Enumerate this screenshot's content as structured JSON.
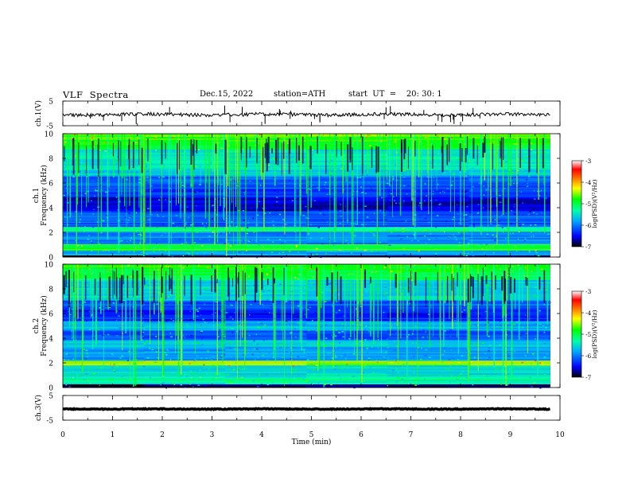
{
  "header": {
    "title": "VLF  Spectra",
    "date": "Dec.15, 2022",
    "station": "station=ATH",
    "start_ut": "start  UT  =    20: 30: 1"
  },
  "chart_data": [
    {
      "type": "line",
      "panel": "ch1-waveform",
      "ylabel": "ch.1(V)",
      "ylim": [
        -5,
        5
      ],
      "yticks": [
        5,
        -5
      ],
      "xlim": [
        0,
        10
      ]
    },
    {
      "type": "heatmap",
      "panel": "ch1-spectrogram",
      "ylabel": "ch.1",
      "ylabel2": "Frequency  (kHz)",
      "ylim": [
        0,
        10
      ],
      "yticks": [
        0,
        2,
        4,
        6,
        8,
        10
      ],
      "xlim": [
        0,
        10
      ],
      "data_end_min": 9.8,
      "colorbar": {
        "label": "log(PSD)(V²/Hz)",
        "range": [
          -7,
          -3
        ],
        "ticks": [
          -3,
          -4,
          -5,
          -6,
          -7
        ],
        "colors": [
          "#000000",
          "#0000ff",
          "#00aaff",
          "#00ffaa",
          "#00ff00",
          "#ffff00",
          "#ff8800",
          "#ff0000",
          "#ffffff"
        ]
      }
    },
    {
      "type": "heatmap",
      "panel": "ch2-spectrogram",
      "ylabel": "ch.2",
      "ylabel2": "Frequency  (kHz)",
      "ylim": [
        0,
        10
      ],
      "yticks": [
        0,
        2,
        4,
        6,
        8,
        10
      ],
      "xlim": [
        0,
        10
      ],
      "data_end_min": 9.8,
      "colorbar": {
        "label": "log(PSD)(V²/Hz)",
        "range": [
          -7,
          -3
        ],
        "ticks": [
          -3,
          -4,
          -5,
          -6,
          -7
        ]
      }
    },
    {
      "type": "line",
      "panel": "ch3-waveform",
      "ylabel": "ch.3(V)",
      "ylim": [
        -5,
        5
      ],
      "yticks": [
        5,
        -5
      ],
      "xlim": [
        0,
        10
      ],
      "xlabel": "Time  (min)",
      "xticks": [
        0,
        1,
        2,
        3,
        4,
        5,
        6,
        7,
        8,
        9,
        10
      ]
    }
  ]
}
